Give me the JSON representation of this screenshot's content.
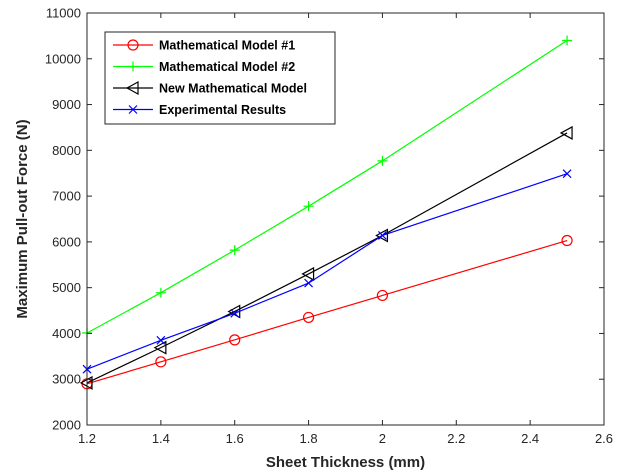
{
  "chart_data": {
    "type": "line",
    "xlabel": "Sheet Thickness (mm)",
    "ylabel": "Maximum Pull-out Force (N)",
    "xlim": [
      1.2,
      2.6
    ],
    "ylim": [
      2000,
      11000
    ],
    "xticks": [
      1.2,
      1.4,
      1.6,
      1.8,
      2,
      2.2,
      2.4,
      2.6
    ],
    "yticks": [
      2000,
      3000,
      4000,
      5000,
      6000,
      7000,
      8000,
      9000,
      10000,
      11000
    ],
    "grid": false,
    "legend_position": "top-left",
    "x": [
      1.2,
      1.4,
      1.6,
      1.8,
      2,
      2.5
    ],
    "series": [
      {
        "name": "Mathematical Model #1",
        "color": "#ff0000",
        "marker": "circle",
        "values": [
          2900,
          3380,
          3860,
          4350,
          4830,
          6030
        ]
      },
      {
        "name": "Mathematical Model #2",
        "color": "#00ff00",
        "marker": "plus",
        "values": [
          4010,
          4890,
          5820,
          6780,
          7770,
          10400
        ]
      },
      {
        "name": "New Mathematical Model",
        "color": "#000000",
        "marker": "triangle-left",
        "values": [
          2920,
          3690,
          4480,
          5300,
          6140,
          8380
        ]
      },
      {
        "name": "Experimental Results",
        "color": "#0000ff",
        "marker": "x",
        "values": [
          3220,
          3850,
          4440,
          5100,
          6140,
          7490
        ]
      }
    ]
  }
}
